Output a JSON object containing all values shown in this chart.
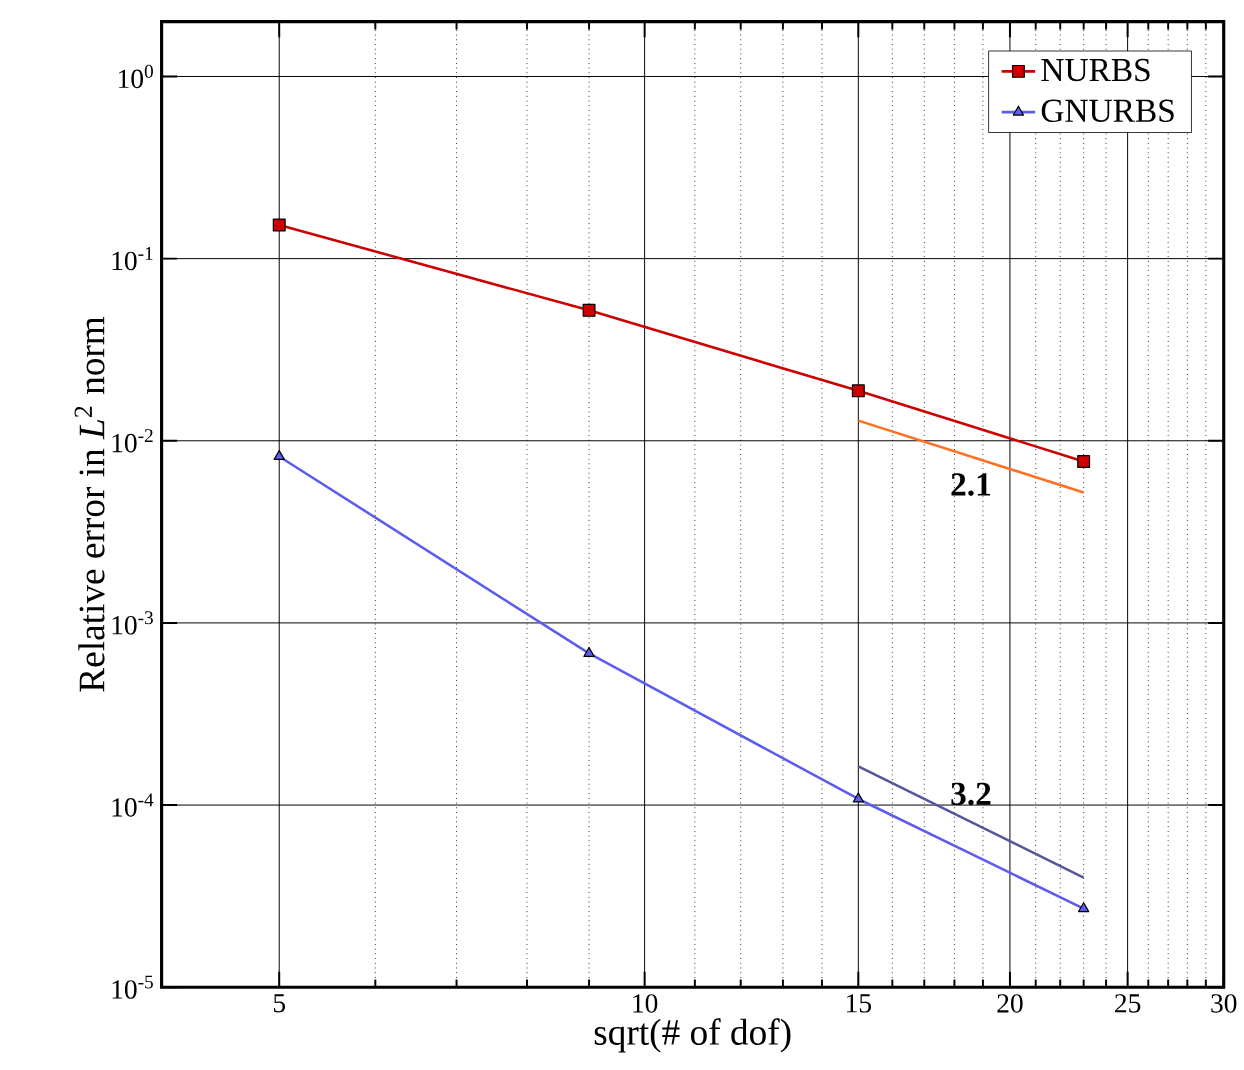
{
  "chart_data": {
    "type": "line",
    "xlabel": "sqrt(# of dof)",
    "ylabel": "Relative error in *L*$^{2}$ norm",
    "log": "xy",
    "grid": true,
    "legend": "top right",
    "xlim": [
      4,
      30
    ],
    "ylim": [
      1e-05,
      2
    ],
    "xticks": [
      5,
      10,
      15,
      20,
      25,
      30
    ],
    "yticks": [
      {
        "value": 1e-05,
        "label": "10$^{-5}$"
      },
      {
        "value": 0.0001,
        "label": "10$^{-4}$"
      },
      {
        "value": 0.001,
        "label": "10$^{-3}$"
      },
      {
        "value": 0.01,
        "label": "10$^{-2}$"
      },
      {
        "value": 0.1,
        "label": "10$^{-1}$"
      },
      {
        "value": 1,
        "label": "10$^{0}$"
      }
    ],
    "x": [
      5,
      9,
      15,
      23
    ],
    "series": [
      {
        "name": "NURBS",
        "color": "#cc0000",
        "marker": "square",
        "values": [
          0.153,
          0.052,
          0.0188,
          0.0077
        ]
      },
      {
        "name": "GNURBS",
        "color": "#5c5cf0",
        "marker": "triangle",
        "values": [
          0.0082,
          0.00068,
          0.000108,
          2.7e-05
        ]
      },
      {
        "type": "line",
        "color": "#ff7020",
        "marker": "none",
        "values": [
          null,
          null,
          0.0129,
          0.0052
        ]
      },
      {
        "type": "line",
        "color": "#555599",
        "marker": "none",
        "values": [
          null,
          null,
          0.000163,
          4e-05
        ]
      }
    ],
    "annotations": [
      "2.1",
      "3.2"
    ]
  }
}
